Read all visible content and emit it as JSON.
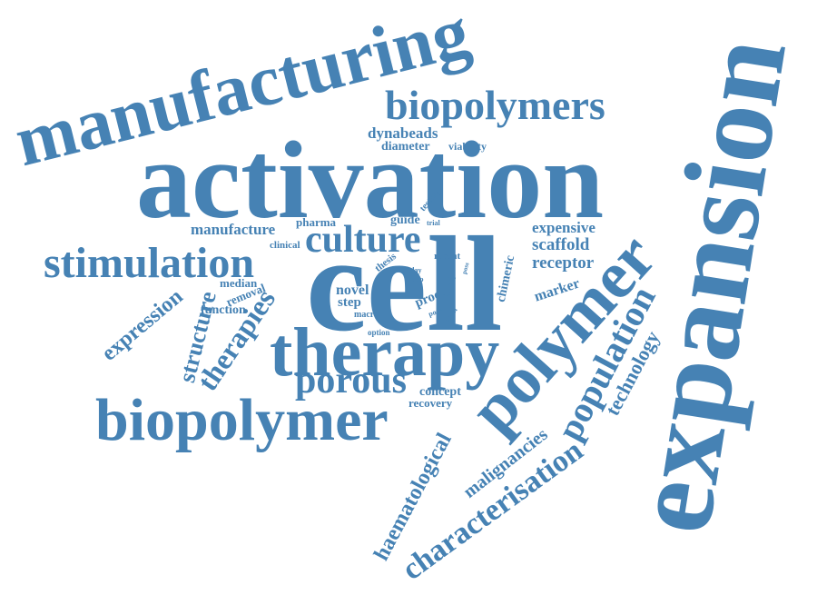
{
  "style": {
    "word_color": "#4682b4",
    "background": "#ffffff"
  },
  "words": [
    {
      "id": "manufacturing",
      "text": "manufacturing"
    },
    {
      "id": "activation",
      "text": "activation"
    },
    {
      "id": "expansion",
      "text": "expansion"
    },
    {
      "id": "biopolymers",
      "text": "biopolymers"
    },
    {
      "id": "cell",
      "text": "cell"
    },
    {
      "id": "therapy",
      "text": "therapy"
    },
    {
      "id": "biopolymer",
      "text": "biopolymer"
    },
    {
      "id": "polymer",
      "text": "polymer"
    },
    {
      "id": "stimulation",
      "text": "stimulation"
    },
    {
      "id": "culture",
      "text": "culture"
    },
    {
      "id": "porous",
      "text": "porous"
    },
    {
      "id": "population",
      "text": "population"
    },
    {
      "id": "characterisation",
      "text": "characterisation"
    },
    {
      "id": "haematological",
      "text": "haematological"
    },
    {
      "id": "therapies",
      "text": "therapies"
    },
    {
      "id": "structure",
      "text": "structure"
    },
    {
      "id": "expression",
      "text": "expression"
    },
    {
      "id": "technology",
      "text": "technology"
    },
    {
      "id": "malignancies",
      "text": "malignancies"
    },
    {
      "id": "dynabeads",
      "text": "dynabeads"
    },
    {
      "id": "diameter",
      "text": "diameter"
    },
    {
      "id": "viability",
      "text": "viability"
    },
    {
      "id": "manufacture",
      "text": "manufacture"
    },
    {
      "id": "pharma",
      "text": "pharma"
    },
    {
      "id": "guide",
      "text": "guide"
    },
    {
      "id": "testing",
      "text": "testing"
    },
    {
      "id": "trial",
      "text": "trial"
    },
    {
      "id": "clinical",
      "text": "clinical"
    },
    {
      "id": "expensive",
      "text": "expensive"
    },
    {
      "id": "scaffold",
      "text": "scaffold"
    },
    {
      "id": "receptor",
      "text": "receptor"
    },
    {
      "id": "marker",
      "text": "marker"
    },
    {
      "id": "chimeric",
      "text": "chimeric"
    },
    {
      "id": "thesis",
      "text": "thesis"
    },
    {
      "id": "recent",
      "text": "recent"
    },
    {
      "id": "median",
      "text": "median"
    },
    {
      "id": "removal",
      "text": "removal"
    },
    {
      "id": "function",
      "text": "function"
    },
    {
      "id": "novel",
      "text": "novel"
    },
    {
      "id": "step",
      "text": "step"
    },
    {
      "id": "macro",
      "text": "macro"
    },
    {
      "id": "option",
      "text": "option"
    },
    {
      "id": "proc",
      "text": "proc"
    },
    {
      "id": "bead",
      "text": "bead"
    },
    {
      "id": "pore",
      "text": "pore"
    },
    {
      "id": "proof",
      "text": "proof"
    },
    {
      "id": "day",
      "text": "day"
    },
    {
      "id": "ratio",
      "text": "ratio"
    },
    {
      "id": "poss",
      "text": "poss"
    },
    {
      "id": "concept",
      "text": "concept"
    },
    {
      "id": "recovery",
      "text": "recovery"
    }
  ]
}
